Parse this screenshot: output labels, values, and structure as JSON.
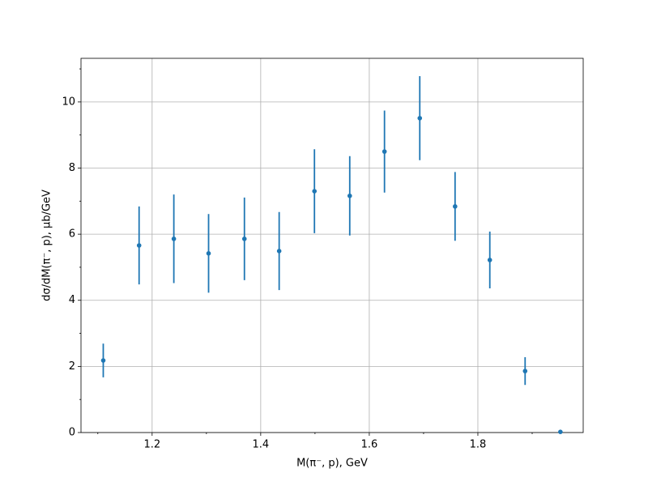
{
  "chart_data": {
    "type": "errorbar",
    "x_label": "M(π⁻, p), GeV",
    "y_label": "dσ/dM(π⁻, p), μb/GeV",
    "x": [
      1.11,
      1.176,
      1.24,
      1.304,
      1.37,
      1.434,
      1.499,
      1.564,
      1.628,
      1.693,
      1.758,
      1.822,
      1.887,
      1.952
    ],
    "values": [
      2.18,
      5.66,
      5.86,
      5.42,
      5.86,
      5.49,
      7.3,
      7.16,
      8.5,
      9.51,
      6.84,
      5.22,
      1.86,
      0.02
    ],
    "errors": [
      0.51,
      1.18,
      1.34,
      1.19,
      1.25,
      1.18,
      1.27,
      1.2,
      1.24,
      1.27,
      1.04,
      0.86,
      0.42,
      0.0
    ],
    "color": "#1f77b4",
    "xlim": [
      1.069,
      1.994
    ],
    "ylim": [
      0,
      11.32
    ],
    "xticks": [
      1.2,
      1.4,
      1.6,
      1.8
    ],
    "yticks": [
      0,
      2,
      4,
      6,
      8,
      10
    ],
    "xminorticks": [
      1.1,
      1.3,
      1.5,
      1.7,
      1.9
    ],
    "yminorticks": [
      1,
      3,
      5,
      7,
      9,
      11
    ],
    "grid": true
  }
}
